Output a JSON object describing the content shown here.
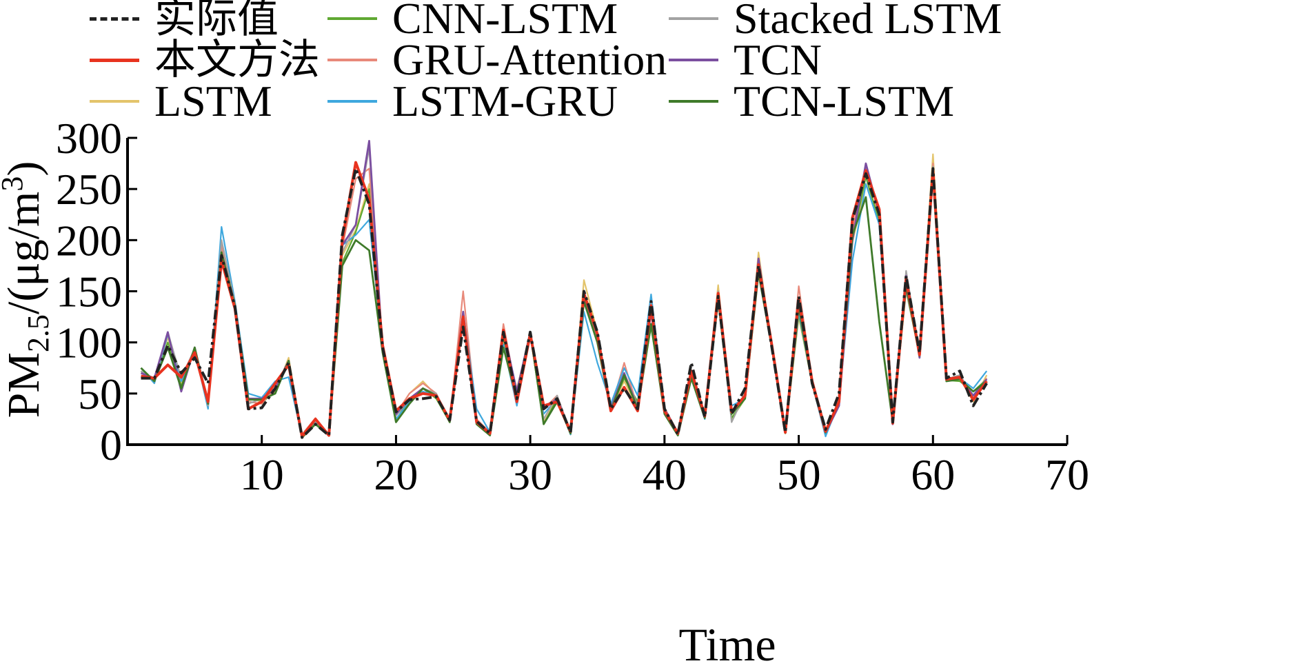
{
  "chart_data": {
    "type": "line",
    "xlabel": "Time",
    "ylabel_main": "PM",
    "ylabel_sub": "2.5",
    "ylabel_rest": "/(μg/m",
    "ylabel_sup": "3",
    "ylabel_close": ")",
    "xlim": [
      0,
      70
    ],
    "ylim": [
      0,
      300
    ],
    "xticks": [
      10,
      20,
      30,
      40,
      50,
      60,
      70
    ],
    "yticks": [
      0,
      50,
      100,
      150,
      200,
      250,
      300
    ],
    "legend_placement": "top",
    "x": [
      1,
      2,
      3,
      4,
      5,
      6,
      7,
      8,
      9,
      10,
      11,
      12,
      13,
      14,
      15,
      16,
      17,
      18,
      19,
      20,
      21,
      22,
      23,
      24,
      25,
      26,
      27,
      28,
      29,
      30,
      31,
      32,
      33,
      34,
      35,
      36,
      37,
      38,
      39,
      40,
      41,
      42,
      43,
      44,
      45,
      46,
      47,
      48,
      49,
      50,
      51,
      52,
      53,
      54,
      55,
      56,
      57,
      58,
      59,
      60,
      61,
      62,
      63,
      64
    ],
    "series": [
      {
        "name": "实际值",
        "color": "#222222",
        "dash": "14,5,4,5",
        "width": 4,
        "values": [
          65,
          65,
          97,
          70,
          85,
          60,
          185,
          135,
          35,
          36,
          55,
          80,
          7,
          20,
          9,
          205,
          270,
          235,
          95,
          32,
          44,
          45,
          47,
          24,
          115,
          23,
          11,
          110,
          45,
          110,
          35,
          45,
          12,
          150,
          110,
          35,
          55,
          35,
          140,
          35,
          10,
          80,
          27,
          145,
          30,
          55,
          175,
          95,
          12,
          145,
          60,
          15,
          50,
          220,
          265,
          225,
          22,
          165,
          90,
          270,
          65,
          72,
          38,
          60
        ]
      },
      {
        "name": "本文方法",
        "color": "#e8331f",
        "dash": "",
        "width": 4,
        "values": [
          67,
          65,
          78,
          66,
          90,
          42,
          180,
          133,
          35,
          42,
          60,
          78,
          8,
          25,
          9,
          200,
          276,
          240,
          97,
          33,
          45,
          50,
          48,
          24,
          125,
          22,
          11,
          112,
          42,
          108,
          38,
          42,
          13,
          148,
          108,
          33,
          56,
          33,
          136,
          33,
          11,
          72,
          28,
          148,
          32,
          48,
          176,
          97,
          12,
          143,
          62,
          13,
          42,
          222,
          268,
          230,
          21,
          162,
          88,
          268,
          64,
          66,
          44,
          62
        ]
      },
      {
        "name": "LSTM",
        "color": "#e3c46b",
        "dash": "",
        "width": 2.2,
        "values": [
          70,
          63,
          105,
          60,
          93,
          40,
          190,
          135,
          45,
          42,
          52,
          85,
          8,
          22,
          9,
          185,
          210,
          255,
          100,
          30,
          50,
          62,
          48,
          22,
          125,
          20,
          9,
          100,
          55,
          107,
          22,
          45,
          10,
          161,
          110,
          35,
          62,
          36,
          130,
          35,
          10,
          65,
          28,
          156,
          25,
          45,
          188,
          95,
          12,
          125,
          60,
          9,
          40,
          198,
          255,
          225,
          24,
          150,
          88,
          284,
          64,
          65,
          42,
          68
        ]
      },
      {
        "name": "CNN-LSTM",
        "color": "#5fa832",
        "dash": "",
        "width": 2.2,
        "values": [
          72,
          62,
          100,
          57,
          95,
          38,
          192,
          135,
          42,
          40,
          54,
          80,
          7,
          21,
          9,
          178,
          208,
          250,
          95,
          24,
          45,
          55,
          45,
          22,
          122,
          20,
          9,
          105,
          48,
          108,
          20,
          45,
          10,
          140,
          105,
          35,
          65,
          42,
          115,
          32,
          9,
          68,
          26,
          140,
          26,
          45,
          170,
          95,
          11,
          128,
          60,
          10,
          40,
          200,
          262,
          218,
          22,
          155,
          86,
          270,
          63,
          62,
          52,
          64
        ]
      },
      {
        "name": "GRU-Attention",
        "color": "#e8897a",
        "dash": "",
        "width": 2.2,
        "values": [
          75,
          60,
          108,
          62,
          92,
          40,
          195,
          135,
          42,
          40,
          55,
          80,
          10,
          26,
          9,
          192,
          260,
          270,
          95,
          30,
          50,
          60,
          50,
          22,
          150,
          25,
          12,
          118,
          48,
          110,
          35,
          48,
          12,
          145,
          108,
          35,
          80,
          36,
          128,
          36,
          12,
          70,
          28,
          150,
          30,
          45,
          178,
          95,
          12,
          155,
          62,
          12,
          40,
          210,
          270,
          225,
          24,
          168,
          88,
          275,
          65,
          65,
          45,
          65
        ]
      },
      {
        "name": "LSTM-GRU",
        "color": "#3ea8de",
        "dash": "",
        "width": 2.2,
        "values": [
          75,
          60,
          108,
          62,
          92,
          35,
          213,
          140,
          50,
          46,
          62,
          66,
          8,
          22,
          9,
          195,
          205,
          220,
          95,
          25,
          42,
          52,
          48,
          24,
          130,
          35,
          12,
          98,
          38,
          108,
          30,
          45,
          10,
          130,
          80,
          40,
          75,
          48,
          147,
          35,
          10,
          65,
          25,
          148,
          38,
          45,
          175,
          95,
          12,
          130,
          60,
          8,
          42,
          180,
          255,
          215,
          25,
          152,
          88,
          266,
          64,
          65,
          55,
          72
        ]
      },
      {
        "name": "Stacked LSTM",
        "color": "#a3a3a3",
        "dash": "",
        "width": 2.2,
        "values": [
          72,
          62,
          110,
          65,
          94,
          38,
          200,
          138,
          40,
          45,
          55,
          82,
          7,
          22,
          9,
          188,
          215,
          290,
          90,
          28,
          45,
          55,
          50,
          22,
          128,
          22,
          11,
          112,
          52,
          110,
          25,
          48,
          11,
          145,
          105,
          36,
          70,
          38,
          138,
          34,
          10,
          70,
          28,
          150,
          22,
          50,
          182,
          95,
          12,
          140,
          62,
          12,
          40,
          220,
          265,
          230,
          22,
          170,
          90,
          272,
          64,
          68,
          48,
          62
        ]
      },
      {
        "name": "TCN",
        "color": "#7b4fa0",
        "dash": "",
        "width": 2.8,
        "values": [
          70,
          65,
          110,
          52,
          95,
          40,
          185,
          135,
          45,
          45,
          55,
          82,
          7,
          25,
          9,
          195,
          215,
          297,
          92,
          30,
          45,
          55,
          48,
          24,
          130,
          22,
          12,
          112,
          52,
          110,
          35,
          45,
          12,
          145,
          108,
          35,
          70,
          36,
          130,
          35,
          11,
          72,
          28,
          145,
          32,
          47,
          182,
          95,
          12,
          140,
          62,
          12,
          38,
          200,
          275,
          225,
          20,
          165,
          85,
          270,
          64,
          65,
          48,
          64
        ]
      },
      {
        "name": "TCN-LSTM",
        "color": "#3f7a2a",
        "dash": "",
        "width": 2.8,
        "values": [
          75,
          62,
          95,
          55,
          95,
          40,
          188,
          136,
          44,
          44,
          50,
          82,
          7,
          20,
          9,
          175,
          200,
          190,
          90,
          22,
          40,
          55,
          48,
          22,
          125,
          20,
          9,
          95,
          45,
          110,
          20,
          42,
          11,
          140,
          100,
          33,
          68,
          35,
          118,
          30,
          9,
          65,
          26,
          142,
          30,
          45,
          168,
          95,
          12,
          135,
          60,
          12,
          42,
          205,
          242,
          120,
          22,
          155,
          87,
          270,
          62,
          64,
          52,
          62
        ]
      }
    ]
  }
}
